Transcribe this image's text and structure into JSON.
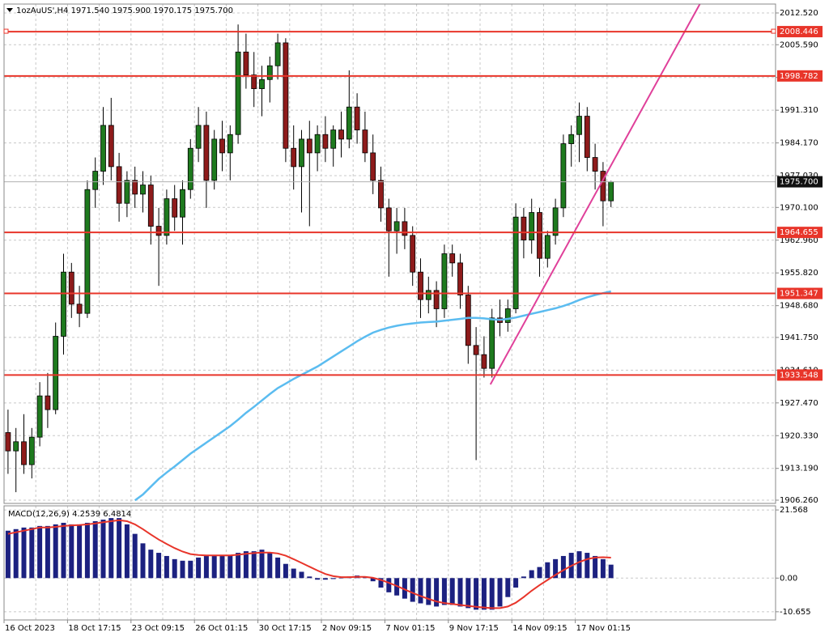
{
  "chart_data": [
    {
      "type": "candlestick",
      "title": "1ozAuUS',H4  1971.540 1975.900 1970.175 1975.700",
      "categories": [
        "16 Oct 2023",
        null,
        null,
        null,
        null,
        null,
        null,
        null,
        "18 Oct 17:15",
        null,
        null,
        null,
        null,
        null,
        null,
        null,
        "23 Oct 09:15",
        null,
        null,
        null,
        null,
        null,
        null,
        null,
        "26 Oct 01:15",
        null,
        null,
        null,
        null,
        null,
        null,
        null,
        "30 Oct 17:15",
        null,
        null,
        null,
        null,
        null,
        null,
        null,
        "2 Nov 09:15",
        null,
        null,
        null,
        null,
        null,
        null,
        null,
        "7 Nov 01:15",
        null,
        null,
        null,
        null,
        null,
        null,
        null,
        "9 Nov 17:15",
        null,
        null,
        null,
        null,
        null,
        null,
        null,
        "14 Nov 09:15",
        null,
        null,
        null,
        null,
        null,
        null,
        null,
        "17 Nov 01:15",
        null,
        null,
        null,
        null
      ],
      "candles": [
        [
          1921,
          1926,
          1912,
          1917
        ],
        [
          1917,
          1922,
          1908,
          1919
        ],
        [
          1919,
          1925,
          1912,
          1914
        ],
        [
          1914,
          1922,
          1911,
          1920
        ],
        [
          1920,
          1932,
          1918,
          1929
        ],
        [
          1929,
          1934,
          1922,
          1926
        ],
        [
          1926,
          1945,
          1925,
          1942
        ],
        [
          1942,
          1960,
          1938,
          1956
        ],
        [
          1956,
          1958,
          1946,
          1949
        ],
        [
          1949,
          1953,
          1944,
          1947
        ],
        [
          1947,
          1976,
          1946,
          1974
        ],
        [
          1974,
          1981,
          1970,
          1978
        ],
        [
          1978,
          1992,
          1975,
          1988
        ],
        [
          1988,
          1994,
          1976,
          1979
        ],
        [
          1979,
          1982,
          1967,
          1971
        ],
        [
          1971,
          1978,
          1968,
          1976
        ],
        [
          1976,
          1979,
          1970,
          1973
        ],
        [
          1973,
          1978,
          1969,
          1975
        ],
        [
          1975,
          1977,
          1962,
          1966
        ],
        [
          1966,
          1970,
          1953,
          1964
        ],
        [
          1964,
          1974,
          1962,
          1972
        ],
        [
          1972,
          1975,
          1965,
          1968
        ],
        [
          1968,
          1976,
          1962,
          1974
        ],
        [
          1974,
          1985,
          1972,
          1983
        ],
        [
          1983,
          1992,
          1980,
          1988
        ],
        [
          1988,
          1991,
          1970,
          1976
        ],
        [
          1976,
          1987,
          1974,
          1985
        ],
        [
          1985,
          1989,
          1978,
          1982
        ],
        [
          1982,
          1988,
          1976,
          1986
        ],
        [
          1986,
          2010,
          1984,
          2004
        ],
        [
          2004,
          2008,
          1996,
          1999
        ],
        [
          1999,
          2004,
          1992,
          1996
        ],
        [
          1996,
          2001,
          1990,
          1998
        ],
        [
          1998,
          2003,
          1993,
          2001
        ],
        [
          2001,
          2008,
          1998,
          2006
        ],
        [
          2006,
          2007,
          1980,
          1983
        ],
        [
          1983,
          1988,
          1974,
          1979
        ],
        [
          1979,
          1987,
          1969,
          1985
        ],
        [
          1985,
          1989,
          1966,
          1982
        ],
        [
          1982,
          1988,
          1978,
          1986
        ],
        [
          1986,
          1990,
          1980,
          1983
        ],
        [
          1983,
          1988,
          1979,
          1987
        ],
        [
          1987,
          1991,
          1981,
          1985
        ],
        [
          1985,
          2000,
          1983,
          1992
        ],
        [
          1992,
          1995,
          1984,
          1987
        ],
        [
          1987,
          1991,
          1980,
          1982
        ],
        [
          1982,
          1986,
          1973,
          1976
        ],
        [
          1976,
          1979,
          1967,
          1970
        ],
        [
          1970,
          1972,
          1955,
          1965
        ],
        [
          1965,
          1970,
          1960,
          1967
        ],
        [
          1967,
          1970,
          1961,
          1964
        ],
        [
          1964,
          1966,
          1953,
          1956
        ],
        [
          1956,
          1959,
          1946,
          1950
        ],
        [
          1950,
          1955,
          1947,
          1952
        ],
        [
          1952,
          1954,
          1944,
          1948
        ],
        [
          1948,
          1962,
          1946,
          1960
        ],
        [
          1960,
          1962,
          1955,
          1958
        ],
        [
          1958,
          1960,
          1948,
          1951
        ],
        [
          1951,
          1953,
          1936,
          1940
        ],
        [
          1940,
          1944,
          1915,
          1938
        ],
        [
          1938,
          1942,
          1933,
          1935
        ],
        [
          1935,
          1948,
          1933,
          1946
        ],
        [
          1946,
          1950,
          1942,
          1945
        ],
        [
          1945,
          1950,
          1943,
          1948
        ],
        [
          1948,
          1971,
          1947,
          1968
        ],
        [
          1968,
          1970,
          1959,
          1963
        ],
        [
          1963,
          1972,
          1960,
          1969
        ],
        [
          1969,
          1970,
          1955,
          1959
        ],
        [
          1959,
          1965,
          1957,
          1964
        ],
        [
          1964,
          1972,
          1962,
          1970
        ],
        [
          1970,
          1986,
          1968,
          1984
        ],
        [
          1984,
          1988,
          1979,
          1986
        ],
        [
          1986,
          1993,
          1980,
          1990
        ],
        [
          1990,
          1992,
          1978,
          1981
        ],
        [
          1981,
          1984,
          1974,
          1978
        ],
        [
          1978,
          1980,
          1966,
          1971.54
        ],
        [
          1971.54,
          1975.9,
          1970.175,
          1975.7
        ]
      ],
      "up_color": "#1e7a1e",
      "down_color": "#8e1b1b",
      "wick_color": "#000000",
      "ma": {
        "color": "#5bbcf0",
        "values": [
          null,
          null,
          null,
          null,
          null,
          null,
          null,
          null,
          null,
          null,
          null,
          null,
          null,
          null,
          null,
          null,
          1906.2,
          1907.5,
          1909.2,
          1910.9,
          1912.3,
          1913.6,
          1915.0,
          1916.4,
          1917.6,
          1918.8,
          1920.0,
          1921.2,
          1922.4,
          1923.8,
          1925.3,
          1926.6,
          1928.0,
          1929.4,
          1930.7,
          1931.7,
          1932.7,
          1933.6,
          1934.5,
          1935.4,
          1936.5,
          1937.6,
          1938.7,
          1939.8,
          1940.9,
          1941.9,
          1942.8,
          1943.4,
          1943.9,
          1944.3,
          1944.6,
          1944.8,
          1945.0,
          1945.1,
          1945.2,
          1945.4,
          1945.6,
          1945.8,
          1946.0,
          1946.0,
          1945.9,
          1945.7,
          1945.6,
          1945.8,
          1946.1,
          1946.5,
          1946.9,
          1947.3,
          1947.7,
          1948.1,
          1948.6,
          1949.2,
          1949.9,
          1950.5,
          1951.0,
          1951.4,
          1951.8
        ]
      },
      "trendline": {
        "color": "#e0409a",
        "x": [
          60.8,
          87.2
        ],
        "y": [
          1931.5,
          2014.46
        ]
      },
      "levels": {
        "color": "#e8352a",
        "values": [
          2008.446,
          1998.782,
          1964.655,
          1951.347,
          1933.548
        ]
      },
      "last_price": {
        "value": 1975.7,
        "label": "1975.700"
      },
      "ylim": [
        1905.55,
        2014.46
      ],
      "yticks": [
        {
          "value": 2012.52,
          "label": "2012.520"
        },
        {
          "value": 2005.59,
          "label": "2005.590"
        },
        {
          "value": 1998.45,
          "label": "1998.450"
        },
        {
          "value": 1991.31,
          "label": "1991.310"
        },
        {
          "value": 1984.17,
          "label": "1984.170"
        },
        {
          "value": 1977.03,
          "label": "1977.030"
        },
        {
          "value": 1970.1,
          "label": "1970.100"
        },
        {
          "value": 1962.96,
          "label": "1962.960"
        },
        {
          "value": 1955.82,
          "label": "1955.820"
        },
        {
          "value": 1948.68,
          "label": "1948.680"
        },
        {
          "value": 1941.75,
          "label": "1941.750"
        },
        {
          "value": 1934.61,
          "label": "1934.610"
        },
        {
          "value": 1927.47,
          "label": "1927.470"
        },
        {
          "value": 1920.33,
          "label": "1920.330"
        },
        {
          "value": 1913.19,
          "label": "1913.190"
        },
        {
          "value": 1906.26,
          "label": "1906.260"
        }
      ],
      "grid": true
    },
    {
      "type": "macd",
      "title": "MACD(12,26,9) 4.2539 6.4814",
      "histogram": {
        "color": "#1c2180",
        "values": [
          15,
          15.5,
          16,
          16,
          16.5,
          16.5,
          17,
          17.5,
          17,
          17,
          17.5,
          18,
          18.5,
          19,
          19,
          17,
          14,
          11,
          9,
          8,
          7,
          6,
          5.5,
          5.5,
          6.5,
          7,
          7,
          7,
          7,
          8,
          8.5,
          8.5,
          9,
          8,
          6.5,
          4.5,
          3,
          2,
          0.5,
          -0.5,
          -0.5,
          -0.3,
          0,
          0.5,
          0.8,
          0.3,
          -1,
          -3,
          -4.5,
          -5.5,
          -6.5,
          -7.5,
          -8,
          -8.5,
          -9,
          -8.5,
          -8.5,
          -9,
          -9.5,
          -10,
          -10,
          -10,
          -9,
          -6,
          -3,
          0.5,
          2.5,
          3.5,
          5,
          6,
          7,
          8,
          8.5,
          8,
          7,
          6,
          4.2539
        ]
      },
      "signal": {
        "color": "#e8352a",
        "values": [
          14,
          14.5,
          15,
          15.5,
          16,
          16,
          16.2,
          16.5,
          16.7,
          16.8,
          17,
          17.3,
          17.7,
          18,
          18.3,
          18,
          17,
          15.5,
          13.8,
          12.2,
          10.8,
          9.5,
          8.4,
          7.6,
          7.3,
          7.2,
          7.2,
          7.2,
          7.2,
          7.4,
          7.7,
          7.9,
          8.1,
          8.1,
          7.8,
          7.1,
          6,
          4.8,
          3.6,
          2.4,
          1.3,
          0.6,
          0.3,
          0.3,
          0.4,
          0.4,
          0.1,
          -0.6,
          -1.5,
          -2.5,
          -3.6,
          -4.7,
          -5.7,
          -6.6,
          -7.4,
          -7.9,
          -8.2,
          -8.5,
          -8.8,
          -9.1,
          -9.3,
          -9.5,
          -9.5,
          -9,
          -7.8,
          -6,
          -4,
          -2.2,
          -0.6,
          1,
          2.5,
          3.9,
          5.1,
          6,
          6.5,
          6.6,
          6.4814
        ]
      },
      "ylim": [
        -13.25,
        22.87
      ],
      "yticks": [
        21.568,
        {
          "value": 0,
          "label": "0.00"
        },
        -10.655
      ],
      "grid": true
    }
  ]
}
